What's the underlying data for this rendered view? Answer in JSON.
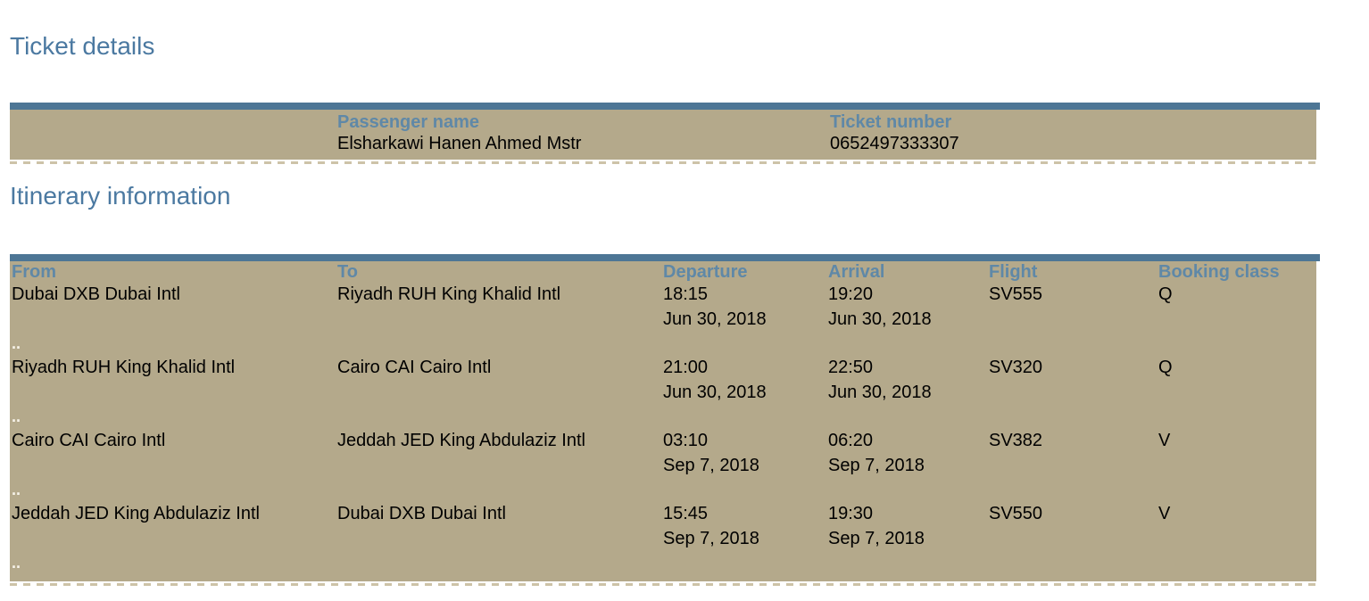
{
  "headings": {
    "ticket_details": "Ticket details",
    "itinerary": "Itinerary information"
  },
  "ticket": {
    "passenger_name_label": "Passenger name",
    "passenger_name": "Elsharkawi Hanen Ahmed Mstr",
    "ticket_number_label": "Ticket number",
    "ticket_number": "0652497333307"
  },
  "itinerary": {
    "columns": [
      "From",
      "To",
      "Departure",
      "Arrival",
      "Flight",
      "Booking class"
    ],
    "rows": [
      {
        "from": "Dubai DXB Dubai Intl",
        "to": "Riyadh RUH King Khalid Intl",
        "departure_time": "18:15",
        "departure_date": "Jun 30, 2018",
        "arrival_time": "19:20",
        "arrival_date": "Jun 30, 2018",
        "flight": "SV555",
        "booking_class": "Q",
        "separator": ".."
      },
      {
        "from": "Riyadh RUH King Khalid Intl",
        "to": "Cairo CAI Cairo Intl",
        "departure_time": "21:00",
        "departure_date": "Jun 30, 2018",
        "arrival_time": "22:50",
        "arrival_date": "Jun 30, 2018",
        "flight": "SV320",
        "booking_class": "Q",
        "separator": ".."
      },
      {
        "from": "Cairo CAI Cairo Intl",
        "to": "Jeddah JED King Abdulaziz Intl",
        "departure_time": "03:10",
        "departure_date": "Sep 7, 2018",
        "arrival_time": "06:20",
        "arrival_date": "Sep 7, 2018",
        "flight": "SV382",
        "booking_class": "V",
        "separator": ".."
      },
      {
        "from": "Jeddah JED King Abdulaziz Intl",
        "to": "Dubai DXB Dubai Intl",
        "departure_time": "15:45",
        "departure_date": "Sep 7, 2018",
        "arrival_time": "19:30",
        "arrival_date": "Sep 7, 2018",
        "flight": "SV550",
        "booking_class": "V",
        "separator": ".."
      }
    ]
  },
  "colors": {
    "accent_border": "#4d7695",
    "table_background": "#b4a98b",
    "heading_text": "#4b79a1",
    "column_label_text": "#5f88a7",
    "body_text": "#000000",
    "row_separator_text": "#f7f3e9"
  }
}
